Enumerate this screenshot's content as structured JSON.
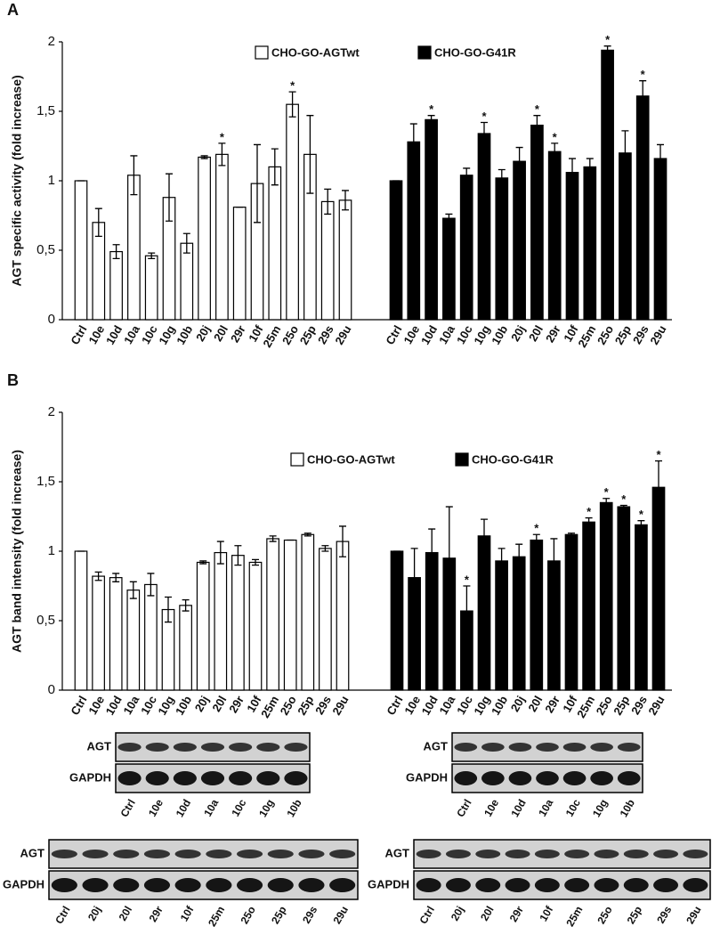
{
  "chart_data": [
    {
      "type": "bar",
      "title": "A",
      "y_label": "AGT specific activity (fold increase)",
      "categories": [
        "Ctrl",
        "10e",
        "10d",
        "10a",
        "10c",
        "10g",
        "10b",
        "20j",
        "20l",
        "29r",
        "10f",
        "25m",
        "25o",
        "25p",
        "29s",
        "29u"
      ],
      "series": [
        {
          "name": "CHO-GO-AGTwt",
          "color": "#ffffff",
          "values": [
            1.0,
            0.7,
            0.49,
            1.04,
            0.46,
            0.88,
            0.55,
            1.17,
            1.19,
            0.81,
            0.98,
            1.1,
            1.55,
            1.19,
            0.85,
            0.86
          ],
          "errors": [
            0,
            0.1,
            0.05,
            0.14,
            0.02,
            0.17,
            0.07,
            0.01,
            0.08,
            0,
            0.28,
            0.13,
            0.09,
            0.28,
            0.09,
            0.07
          ],
          "annotations": [
            null,
            null,
            null,
            null,
            null,
            null,
            null,
            null,
            "*",
            null,
            null,
            null,
            "*",
            null,
            null,
            null
          ]
        },
        {
          "name": "CHO-GO-G41R",
          "color": "#000000",
          "values": [
            1.0,
            1.28,
            1.44,
            0.73,
            1.04,
            1.34,
            1.02,
            1.14,
            1.4,
            1.21,
            1.06,
            1.1,
            1.94,
            1.2,
            1.61,
            1.16
          ],
          "errors": [
            0,
            0.13,
            0.03,
            0.03,
            0.05,
            0.08,
            0.06,
            0.1,
            0.07,
            0.06,
            0.1,
            0.06,
            0.03,
            0.16,
            0.11,
            0.1
          ],
          "annotations": [
            null,
            null,
            "*",
            null,
            null,
            "*",
            null,
            null,
            "*",
            "*",
            null,
            null,
            "*",
            null,
            "*",
            null
          ]
        }
      ],
      "ylim": [
        0,
        2
      ],
      "yticks": [
        0,
        {
          "value": 0.5,
          "label": "0,5"
        },
        1,
        {
          "value": 1.5,
          "label": "1,5"
        },
        2
      ]
    },
    {
      "type": "bar",
      "title": "B",
      "y_label": "AGT band intensity (fold increase)",
      "categories": [
        "Ctrl",
        "10e",
        "10d",
        "10a",
        "10c",
        "10g",
        "10b",
        "20j",
        "20l",
        "29r",
        "10f",
        "25m",
        "25o",
        "25p",
        "29s",
        "29u"
      ],
      "series": [
        {
          "name": "CHO-GO-AGTwt",
          "color": "#ffffff",
          "values": [
            1.0,
            0.82,
            0.81,
            0.72,
            0.76,
            0.58,
            0.61,
            0.92,
            0.99,
            0.97,
            0.92,
            1.09,
            1.08,
            1.12,
            1.02,
            1.07
          ],
          "errors": [
            0,
            0.03,
            0.03,
            0.06,
            0.08,
            0.09,
            0.04,
            0.01,
            0.08,
            0.07,
            0.02,
            0.02,
            0,
            0.01,
            0.02,
            0.11
          ],
          "annotations": [
            null,
            null,
            null,
            null,
            null,
            null,
            null,
            null,
            null,
            null,
            null,
            null,
            null,
            null,
            null,
            null
          ]
        },
        {
          "name": "CHO-GO-G41R",
          "color": "#000000",
          "values": [
            1.0,
            0.81,
            0.99,
            0.95,
            0.57,
            1.11,
            0.93,
            0.96,
            1.08,
            0.93,
            1.12,
            1.21,
            1.35,
            1.32,
            1.19,
            1.46
          ],
          "errors": [
            0,
            0.21,
            0.17,
            0.37,
            0.18,
            0.12,
            0.09,
            0.09,
            0.04,
            0.16,
            0.01,
            0.03,
            0.03,
            0.01,
            0.03,
            0.19
          ],
          "annotations": [
            null,
            null,
            null,
            null,
            "*",
            null,
            null,
            null,
            "*",
            null,
            null,
            "*",
            "*",
            "*",
            "*",
            "*"
          ]
        }
      ],
      "ylim": [
        0,
        2
      ],
      "yticks": [
        0,
        {
          "value": 0.5,
          "label": "0,5"
        },
        1,
        {
          "value": 1.5,
          "label": "1,5"
        },
        2
      ]
    }
  ],
  "blots": [
    {
      "rows": [
        "AGT",
        "GAPDH"
      ],
      "lanes": [
        "Ctrl",
        "10e",
        "10d",
        "10a",
        "10c",
        "10g",
        "10b"
      ]
    },
    {
      "rows": [
        "AGT",
        "GAPDH"
      ],
      "lanes": [
        "Ctrl",
        "10e",
        "10d",
        "10a",
        "10c",
        "10g",
        "10b"
      ]
    },
    {
      "rows": [
        "AGT",
        "GAPDH"
      ],
      "lanes": [
        "Ctrl",
        "20j",
        "20l",
        "29r",
        "10f",
        "25m",
        "25o",
        "25p",
        "29s",
        "29u"
      ]
    },
    {
      "rows": [
        "AGT",
        "GAPDH"
      ],
      "lanes": [
        "Ctrl",
        "20j",
        "20l",
        "29r",
        "10f",
        "25m",
        "25o",
        "25p",
        "29s",
        "29u"
      ]
    }
  ]
}
